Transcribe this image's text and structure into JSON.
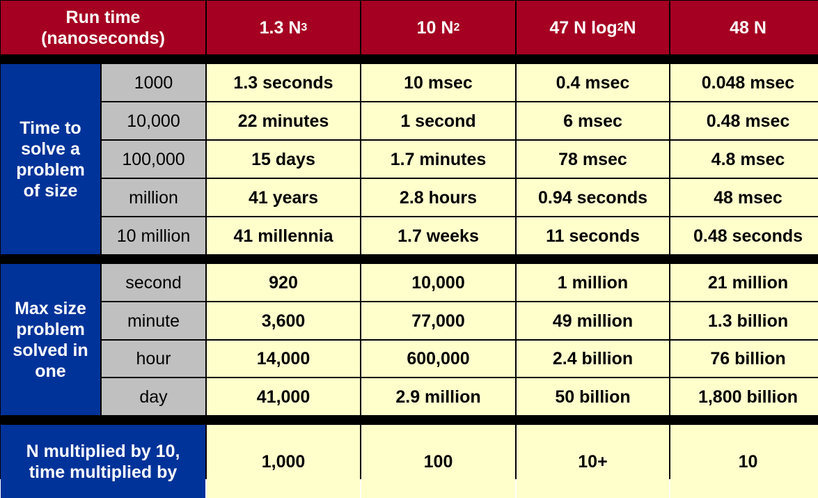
{
  "colors": {
    "header": "#A50021",
    "label": "#003399",
    "row_header": "#C0C0C0",
    "cell": "#FFFFCC"
  },
  "header": {
    "corner": "Run time (nanoseconds)",
    "columns": [
      {
        "base": "1.3 N",
        "sup": "3",
        "sub": "",
        "tail": ""
      },
      {
        "base": "10 N",
        "sup": "2",
        "sub": "",
        "tail": ""
      },
      {
        "base": "47 N log",
        "sup": "",
        "sub": "2",
        "tail": "N"
      },
      {
        "base": "48 N",
        "sup": "",
        "sub": "",
        "tail": ""
      }
    ]
  },
  "sections": [
    {
      "label": "Time to solve a problem of size",
      "rows": [
        {
          "key": "1000",
          "values": [
            "1.3 seconds",
            "10 msec",
            "0.4 msec",
            "0.048 msec"
          ]
        },
        {
          "key": "10,000",
          "values": [
            "22 minutes",
            "1 second",
            "6 msec",
            "0.48 msec"
          ]
        },
        {
          "key": "100,000",
          "values": [
            "15 days",
            "1.7 minutes",
            "78 msec",
            "4.8 msec"
          ]
        },
        {
          "key": "million",
          "values": [
            "41 years",
            "2.8 hours",
            "0.94 seconds",
            "48 msec"
          ]
        },
        {
          "key": "10 million",
          "values": [
            "41 millennia",
            "1.7 weeks",
            "11 seconds",
            "0.48 seconds"
          ]
        }
      ]
    },
    {
      "label": "Max size problem solved in one",
      "rows": [
        {
          "key": "second",
          "values": [
            "920",
            "10,000",
            "1 million",
            "21 million"
          ]
        },
        {
          "key": "minute",
          "values": [
            "3,600",
            "77,000",
            "49 million",
            "1.3 billion"
          ]
        },
        {
          "key": "hour",
          "values": [
            "14,000",
            "600,000",
            "2.4 billion",
            "76 billion"
          ]
        },
        {
          "key": "day",
          "values": [
            "41,000",
            "2.9 million",
            "50 billion",
            "1,800 billion"
          ]
        }
      ]
    }
  ],
  "footer": {
    "label": "N multiplied by 10, time multiplied by",
    "values": [
      "1,000",
      "100",
      "10+",
      "10"
    ]
  }
}
